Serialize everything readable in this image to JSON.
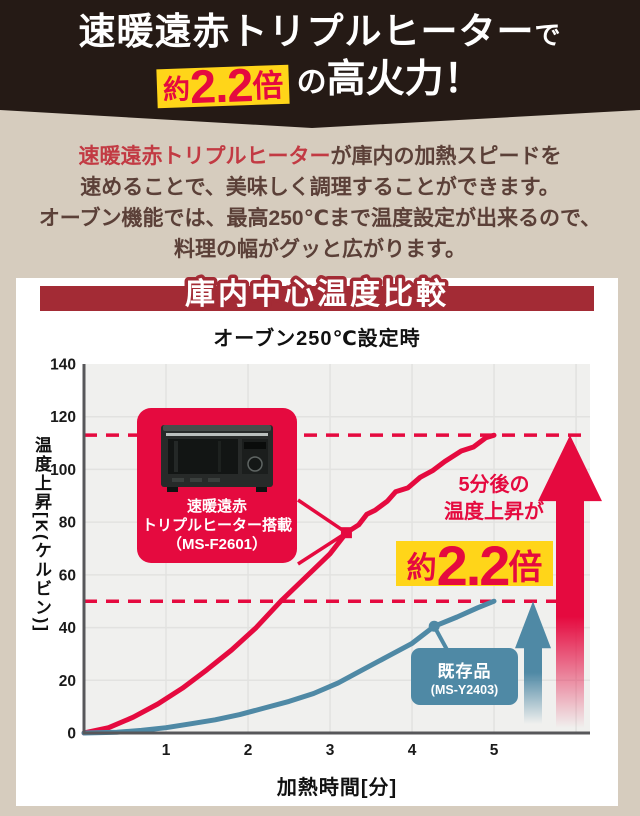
{
  "colors": {
    "beige": "#d6ccbe",
    "dark": "#251a15",
    "accent": "#e50a3f",
    "banner": "#a32b35",
    "yellow": "#ffd519",
    "blue": "#4f89a5",
    "maroon": "#5b4038",
    "intro_red": "#c23a43",
    "plot_bg": "#f0f0ee",
    "grid": "#e2e2e0",
    "axis": "#57575a",
    "tick": "#1a1a1a"
  },
  "header": {
    "line1_main": "速暖遠赤トリプルヒーター",
    "line1_suffix": "で",
    "line2_approx": "約",
    "line2_value": "2.2",
    "line2_unit": "倍",
    "line2_particle": "の",
    "line2_rest": "高火力！"
  },
  "intro": {
    "highlight": "速暖遠赤トリプルヒーター",
    "line1_rest": "が庫内の加熱スピードを",
    "line2": "速めることで、美味しく調理することができます。",
    "line3": "オーブン機能では、最高250℃まで温度設定が出来るので、",
    "line4": "料理の幅がグッと広がります。"
  },
  "banner": {
    "title": "庫内中心温度比較"
  },
  "labels": {
    "red_box": [
      "速暖遠赤",
      "トリプルヒーター搭載",
      "（MS-F2601）"
    ],
    "blue_box": [
      "既存品",
      "(MS-Y2403)"
    ]
  },
  "annotation": {
    "line1": "5分後の",
    "line2": "温度上昇が",
    "approx": "約",
    "value": "2.2",
    "unit": "倍"
  },
  "chart_data": {
    "type": "line",
    "title": "オーブン250℃設定時",
    "xlabel": "加熱時間[分]",
    "ylabel": "温度上昇[K(ケルビン)]",
    "xlim": [
      0,
      6.17
    ],
    "ylim": [
      0,
      140
    ],
    "x_ticks": [
      1,
      2,
      3,
      4,
      5
    ],
    "x_grid": [
      1,
      2,
      3,
      4,
      5,
      6
    ],
    "y_ticks": [
      0,
      20,
      40,
      60,
      80,
      100,
      120,
      140
    ],
    "grid": true,
    "legend_position": "callout-boxes-on-plot",
    "series": [
      {
        "name": "速暖遠赤トリプルヒーター搭載（MS-F2601）",
        "color": "#e50a3f",
        "points": [
          [
            0,
            0
          ],
          [
            0.3,
            2
          ],
          [
            0.6,
            6
          ],
          [
            0.9,
            11
          ],
          [
            1.2,
            17
          ],
          [
            1.5,
            24
          ],
          [
            1.8,
            31.5
          ],
          [
            2.1,
            40
          ],
          [
            2.4,
            50
          ],
          [
            2.7,
            59
          ],
          [
            3.0,
            68
          ],
          [
            3.2,
            76
          ],
          [
            3.35,
            79
          ],
          [
            3.45,
            83
          ],
          [
            3.55,
            84.5
          ],
          [
            3.7,
            88
          ],
          [
            3.8,
            91.5
          ],
          [
            3.95,
            93
          ],
          [
            4.1,
            97
          ],
          [
            4.25,
            99.5
          ],
          [
            4.4,
            103
          ],
          [
            4.6,
            107
          ],
          [
            4.75,
            108.5
          ],
          [
            4.9,
            112
          ],
          [
            5.0,
            113
          ]
        ]
      },
      {
        "name": "既存品（MS-Y2403）",
        "color": "#4f89a5",
        "points": [
          [
            0,
            0
          ],
          [
            0.4,
            0.3
          ],
          [
            0.7,
            1
          ],
          [
            1.0,
            2
          ],
          [
            1.3,
            3.5
          ],
          [
            1.6,
            5
          ],
          [
            1.9,
            7
          ],
          [
            2.2,
            9.5
          ],
          [
            2.5,
            12
          ],
          [
            2.8,
            15
          ],
          [
            3.1,
            19
          ],
          [
            3.4,
            24
          ],
          [
            3.7,
            29
          ],
          [
            4.0,
            34
          ],
          [
            4.27,
            40.5
          ],
          [
            4.55,
            44
          ],
          [
            4.8,
            47.5
          ],
          [
            5.0,
            50
          ]
        ]
      }
    ],
    "dashed_lines": [
      {
        "y": 113
      },
      {
        "y": 50
      }
    ],
    "markers": [
      {
        "series": 0,
        "x": 3.2,
        "y": 76,
        "shape": "square"
      },
      {
        "series": 1,
        "x": 4.27,
        "y": 40.5,
        "shape": "circle"
      }
    ],
    "value_after_5min": {
      "new": 113,
      "existing": 50,
      "ratio_label": "約2.2倍"
    }
  }
}
